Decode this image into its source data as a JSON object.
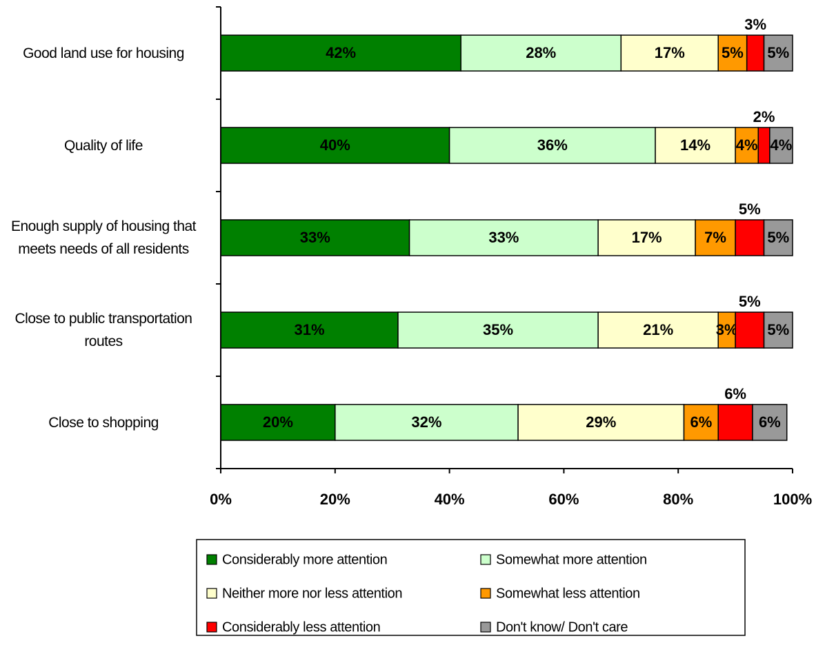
{
  "chart_data": {
    "type": "stacked_barh",
    "categories": [
      "Good land use for housing",
      "Quality of life",
      "Enough supply of housing that meets needs of all residents",
      "Close to public transportation routes",
      "Close to shopping"
    ],
    "series": [
      {
        "name": "Considerably more attention",
        "color": "#008000",
        "values": [
          42,
          40,
          33,
          31,
          20
        ],
        "value_labels": [
          "42%",
          "40%",
          "33%",
          "31%",
          "20%"
        ]
      },
      {
        "name": "Somewhat more attention",
        "color": "#ccffcc",
        "values": [
          28,
          36,
          33,
          35,
          32
        ],
        "value_labels": [
          "28%",
          "36%",
          "33%",
          "35%",
          "32%"
        ]
      },
      {
        "name": "Neither more nor less attention",
        "color": "#ffffcc",
        "values": [
          17,
          14,
          17,
          21,
          29
        ],
        "value_labels": [
          "17%",
          "14%",
          "17%",
          "21%",
          "29%"
        ]
      },
      {
        "name": "Somewhat less attention",
        "color": "#ff9900",
        "values": [
          5,
          4,
          7,
          3,
          6
        ],
        "value_labels": [
          "5%",
          "4%",
          "7%",
          "3%",
          "6%"
        ]
      },
      {
        "name": "Considerably less attention",
        "color": "#ff0000",
        "values": [
          3,
          2,
          5,
          5,
          6
        ],
        "value_labels": [
          "3%",
          "2%",
          "5%",
          "5%",
          "6%"
        ]
      },
      {
        "name": "Don't know/ Don't care",
        "color": "#999999",
        "values": [
          5,
          4,
          5,
          5,
          6
        ],
        "value_labels": [
          "5%",
          "4%",
          "5%",
          "5%",
          "6%"
        ]
      }
    ],
    "xlim": [
      0,
      100
    ],
    "xticks": [
      {
        "value": 0,
        "label": "0%"
      },
      {
        "value": 20,
        "label": "20%"
      },
      {
        "value": 40,
        "label": "40%"
      },
      {
        "value": 60,
        "label": "60%"
      },
      {
        "value": 80,
        "label": "80%"
      },
      {
        "value": 100,
        "label": "100%"
      }
    ],
    "legend": "bottom"
  }
}
